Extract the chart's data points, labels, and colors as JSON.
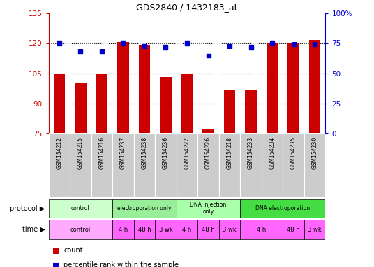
{
  "title": "GDS2840 / 1432183_at",
  "samples": [
    "GSM154212",
    "GSM154215",
    "GSM154216",
    "GSM154237",
    "GSM154238",
    "GSM154236",
    "GSM154222",
    "GSM154226",
    "GSM154218",
    "GSM154233",
    "GSM154234",
    "GSM154235",
    "GSM154230"
  ],
  "counts": [
    105,
    100,
    105,
    121,
    119,
    103,
    105,
    77,
    97,
    97,
    120,
    120,
    122
  ],
  "percentile_ranks": [
    75,
    68,
    68,
    75,
    73,
    72,
    75,
    65,
    73,
    72,
    75,
    74,
    74
  ],
  "ylim_left": [
    75,
    135
  ],
  "ylim_right": [
    0,
    100
  ],
  "yticks_left": [
    75,
    90,
    105,
    120,
    135
  ],
  "yticks_right": [
    0,
    25,
    50,
    75,
    100
  ],
  "bar_color": "#cc0000",
  "dot_color": "#0000cc",
  "protocol_row": [
    {
      "label": "control",
      "start": 0,
      "end": 3,
      "color": "#ccffcc"
    },
    {
      "label": "electroporation only",
      "start": 3,
      "end": 6,
      "color": "#99ee99"
    },
    {
      "label": "DNA injection\nonly",
      "start": 6,
      "end": 9,
      "color": "#aaffaa"
    },
    {
      "label": "DNA electroporation",
      "start": 9,
      "end": 13,
      "color": "#44dd44"
    }
  ],
  "time_row": [
    {
      "label": "control",
      "start": 0,
      "end": 3,
      "color": "#ffaaff"
    },
    {
      "label": "4 h",
      "start": 3,
      "end": 4,
      "color": "#ff66ff"
    },
    {
      "label": "48 h",
      "start": 4,
      "end": 5,
      "color": "#ff66ff"
    },
    {
      "label": "3 wk",
      "start": 5,
      "end": 6,
      "color": "#ff66ff"
    },
    {
      "label": "4 h",
      "start": 6,
      "end": 7,
      "color": "#ff66ff"
    },
    {
      "label": "48 h",
      "start": 7,
      "end": 8,
      "color": "#ff66ff"
    },
    {
      "label": "3 wk",
      "start": 8,
      "end": 9,
      "color": "#ff66ff"
    },
    {
      "label": "4 h",
      "start": 9,
      "end": 11,
      "color": "#ff66ff"
    },
    {
      "label": "48 h",
      "start": 11,
      "end": 12,
      "color": "#ff66ff"
    },
    {
      "label": "3 wk",
      "start": 12,
      "end": 13,
      "color": "#ff66ff"
    }
  ],
  "left_color": "#cc0000",
  "right_color": "#0000cc",
  "sample_bg": "#cccccc",
  "sample_border": "#aaaaaa"
}
